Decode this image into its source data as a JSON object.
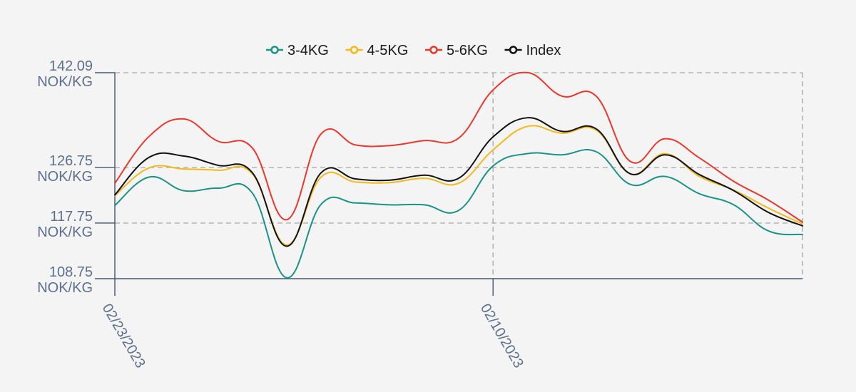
{
  "chart_data": {
    "type": "line",
    "title": "",
    "xlabel": "",
    "ylabel": "",
    "unit": "NOK/KG",
    "ylim": [
      108.75,
      142.09
    ],
    "y_ticks": [
      {
        "value": 142.09,
        "label": "142.09",
        "unit": "NOK/KG"
      },
      {
        "value": 126.75,
        "label": "126.75",
        "unit": "NOK/KG"
      },
      {
        "value": 117.75,
        "label": "117.75",
        "unit": "NOK/KG"
      },
      {
        "value": 108.75,
        "label": "108.75",
        "unit": "NOK/KG"
      }
    ],
    "x_ticks": [
      {
        "index": 0,
        "label": "02/23/2023"
      },
      {
        "index": 11,
        "label": "02/10/2023"
      }
    ],
    "n_points": 21,
    "grid": true,
    "legend_position": "top-center",
    "series": [
      {
        "name": "3-4KG",
        "color": "#1a9386",
        "values": [
          120.6,
          125.2,
          123.0,
          123.4,
          122.6,
          108.9,
          120.8,
          121.0,
          120.7,
          120.7,
          119.8,
          127.0,
          129.0,
          128.8,
          129.3,
          124.0,
          125.3,
          122.5,
          120.7,
          116.5,
          115.9
        ]
      },
      {
        "name": "4-5KG",
        "color": "#f2b91e",
        "values": [
          122.2,
          126.7,
          126.5,
          126.3,
          125.7,
          114.2,
          125.2,
          124.4,
          124.3,
          125.0,
          124.2,
          129.6,
          133.4,
          132.3,
          132.8,
          125.7,
          129.0,
          125.3,
          123.1,
          120.2,
          117.6
        ]
      },
      {
        "name": "5-6KG",
        "color": "#e8382d",
        "values": [
          124.2,
          131.8,
          134.6,
          131.0,
          129.9,
          118.3,
          132.2,
          130.4,
          130.3,
          131.1,
          131.5,
          139.3,
          142.1,
          138.3,
          138.3,
          127.7,
          131.4,
          128.3,
          124.5,
          121.5,
          117.9
        ]
      },
      {
        "name": "Index",
        "color": "#111111",
        "values": [
          122.3,
          128.4,
          128.6,
          127.1,
          125.9,
          114.0,
          125.9,
          124.9,
          124.7,
          125.5,
          125.0,
          131.7,
          134.8,
          132.6,
          133.0,
          125.7,
          128.8,
          125.6,
          123.0,
          119.5,
          117.3
        ]
      }
    ]
  }
}
